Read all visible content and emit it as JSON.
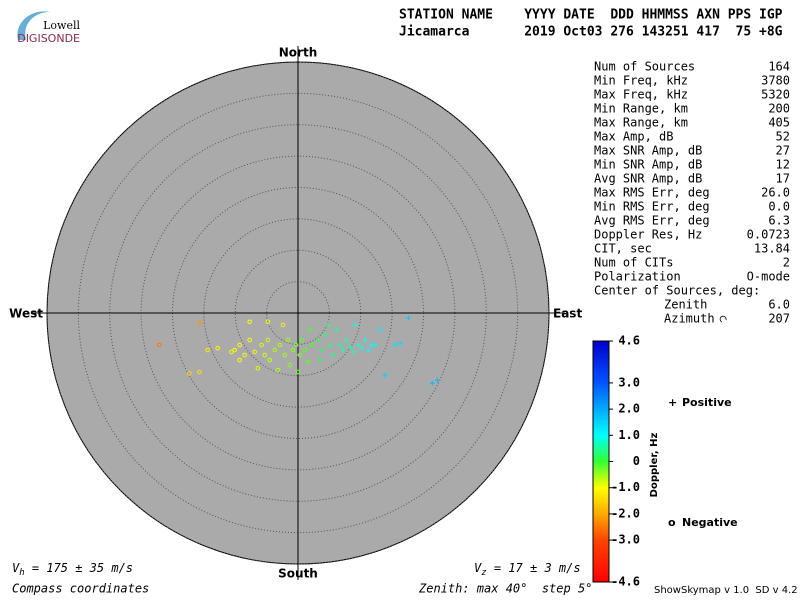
{
  "logo": {
    "top": "Lowell",
    "brand": "DIGISONDE"
  },
  "header": {
    "line1": "STATION NAME    YYYY DATE  DDD HHMMSS AXN PPS IGP",
    "line2": "Jicamarca       2019 Oct03 276 143251 417  75 +8G"
  },
  "info": {
    "rows": [
      [
        "Num of Sources",
        "164"
      ],
      [
        "Min Freq, kHz",
        "3780"
      ],
      [
        "Max Freq, kHz",
        "5320"
      ],
      [
        "Min Range, km",
        "200"
      ],
      [
        "Max Range, km",
        "405"
      ],
      [
        "Max Amp, dB",
        "52"
      ],
      [
        "Max SNR Amp, dB",
        "27"
      ],
      [
        "Min SNR Amp, dB",
        "12"
      ],
      [
        "Avg SNR Amp, dB",
        "17"
      ],
      [
        "Max RMS Err, deg",
        "26.0"
      ],
      [
        "Min RMS Err, deg",
        "0.0"
      ],
      [
        "Avg RMS Err, deg",
        "6.3"
      ],
      [
        "Doppler Res, Hz",
        "0.0723"
      ],
      [
        "CIT, sec",
        "13.84"
      ],
      [
        "Num of CITs",
        "2"
      ],
      [
        "Polarization",
        "O-mode"
      ]
    ],
    "center_title": "Center of Sources, deg:",
    "center_rows": [
      [
        "Zenith",
        "6.0"
      ],
      [
        "Azimuth",
        "207"
      ]
    ]
  },
  "chart_data": {
    "type": "skymap",
    "directions": {
      "north": "North",
      "east": "East",
      "south": "South",
      "west": "West"
    },
    "rlim": [
      0,
      40
    ],
    "rticks": [
      5,
      10,
      15,
      20,
      25,
      30,
      35,
      40
    ],
    "series": [
      {
        "name": "Positive",
        "marker": "+",
        "color": "#0000cc",
        "x": [
          3.2,
          3.8,
          4.3,
          5.1,
          5.6,
          6.1,
          6.7,
          7.2,
          7.7,
          8.3,
          8.8,
          9.1,
          9.6,
          10.2,
          10.7,
          11.2,
          11.8,
          12.3,
          13.1,
          13.9,
          15.5,
          16.3,
          17.6,
          21.4,
          22.2,
          3.5,
          4.8
        ],
        "y": [
          -4.3,
          -5.9,
          -3.5,
          -5.1,
          -6.7,
          -2.7,
          -5.1,
          -5.9,
          -4.3,
          -5.4,
          -6.2,
          -1.9,
          -5.1,
          -5.6,
          -4.3,
          -5.9,
          -5.1,
          -5.1,
          -2.7,
          -9.9,
          -5.1,
          -4.8,
          -0.8,
          -11.2,
          -10.7,
          -7.5,
          -1.9
        ],
        "doppler": [
          0.2,
          0.3,
          0.3,
          0.4,
          0.4,
          0.5,
          0.5,
          0.6,
          0.6,
          0.7,
          0.7,
          0.8,
          0.8,
          0.9,
          0.9,
          1.0,
          1.0,
          1.1,
          1.2,
          1.5,
          1.3,
          1.4,
          1.6,
          1.8,
          1.8,
          0.2,
          0.3
        ]
      },
      {
        "name": "Negative",
        "marker": "o",
        "color": "#cc0000",
        "x": [
          -15.7,
          -22.1,
          -17.3,
          -15.7,
          -14.4,
          -12.8,
          -10.1,
          -9.3,
          -8.5,
          -7.7,
          -6.9,
          -5.8,
          -5.3,
          -4.8,
          -4.5,
          -3.7,
          -2.9,
          -2.4,
          -2.1,
          -1.6,
          -1.3,
          -0.8,
          -0.3,
          0.3,
          0.6,
          1.1,
          1.6,
          1.9,
          2.2,
          -7.7,
          -4.8,
          -9.3,
          -10.6,
          -6.4,
          -3.2,
          0
        ],
        "y": [
          -1.6,
          -5.1,
          -9.6,
          -9.4,
          -5.9,
          -5.6,
          -5.9,
          -5.1,
          -6.7,
          -4.3,
          -6.2,
          -5.1,
          -6.7,
          -4.3,
          -7.5,
          -5.9,
          -5.1,
          -1.9,
          -6.7,
          -4.3,
          -8.3,
          -5.9,
          -5.1,
          -6.7,
          -4.3,
          -5.9,
          -7.8,
          -2.7,
          -5.1,
          -1.4,
          -1.4,
          -7.5,
          -6.2,
          -8.8,
          -9.1,
          -9.4
        ],
        "doppler": [
          -2.2,
          -2.5,
          -1.5,
          -1.4,
          -1.2,
          -1.1,
          -1.0,
          -1.0,
          -0.9,
          -1.0,
          -0.9,
          -0.8,
          -0.8,
          -0.7,
          -0.7,
          -0.6,
          -0.6,
          -1.2,
          -0.5,
          -0.5,
          -0.4,
          -0.4,
          -0.3,
          -0.3,
          -0.2,
          -0.2,
          -0.2,
          -0.1,
          -0.1,
          -1.0,
          -0.9,
          -1.0,
          -1.1,
          -0.8,
          -0.6,
          -0.3
        ]
      }
    ],
    "colorbar": {
      "label": "Doppler, Hz",
      "lim": [
        -4.6,
        4.6
      ],
      "ticks": [
        4.6,
        {
          "value": 3,
          "label": "3.0"
        },
        {
          "value": 2,
          "label": "2.0"
        },
        {
          "value": 1,
          "label": "1.0"
        },
        0,
        {
          "value": -1,
          "label": "-1.0"
        },
        {
          "value": -2,
          "label": "-2.0"
        },
        {
          "value": -3,
          "label": "-3.0"
        },
        -4.6
      ]
    },
    "vh": {
      "symbol": "V",
      "sub": "h",
      "text": " = 175 ± 35 m/s"
    },
    "vz": {
      "symbol": "V",
      "sub": "z",
      "text": " = 17 ± 3 m/s"
    },
    "coords_note": "Compass coordinates",
    "zenith_note": "Zenith: max 40°  step 5°",
    "version": "ShowSkymap v 1.0  SD v 4.2"
  }
}
